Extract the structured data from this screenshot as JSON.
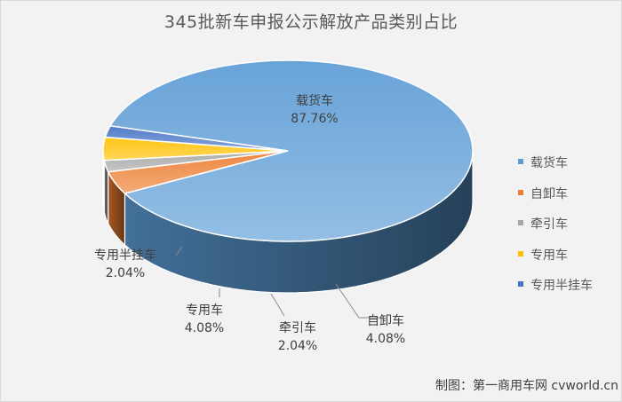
{
  "chart_data": {
    "type": "pie",
    "title": "345批新车申报公示解放产品类别占比",
    "three_d": true,
    "legend_position": "right",
    "slices": [
      {
        "name": "载货车",
        "value": 87.76,
        "label": "87.76%",
        "color": "#5b9bd5"
      },
      {
        "name": "自卸车",
        "value": 4.08,
        "label": "4.08%",
        "color": "#ed7d31"
      },
      {
        "name": "牵引车",
        "value": 2.04,
        "label": "2.04%",
        "color": "#a5a5a5"
      },
      {
        "name": "专用车",
        "value": 4.08,
        "label": "4.08%",
        "color": "#ffc000"
      },
      {
        "name": "专用半挂车",
        "value": 2.04,
        "label": "2.04%",
        "color": "#4472c4"
      }
    ]
  },
  "credit": {
    "label": "制图：",
    "source": "第一商用车网 cvworld.cn"
  }
}
